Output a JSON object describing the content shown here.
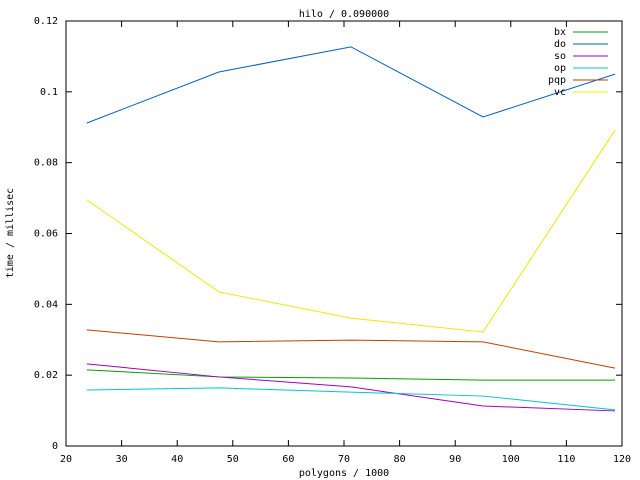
{
  "chart_data": {
    "type": "line",
    "title": "hilo / 0.090000",
    "x_label": "polygons / 1000",
    "y_label": "time / millisec",
    "x": [
      23.75,
      47.5,
      71.25,
      95,
      118.75
    ],
    "series": [
      {
        "name": "bx",
        "color": "#00a000",
        "values": [
          0.0215,
          0.0195,
          0.0192,
          0.0186,
          0.0186
        ]
      },
      {
        "name": "do",
        "color": "#0060c0",
        "values": [
          0.0912,
          0.1056,
          0.1127,
          0.0929,
          0.105
        ]
      },
      {
        "name": "so",
        "color": "#a000c0",
        "values": [
          0.0232,
          0.0195,
          0.0167,
          0.0113,
          0.0099
        ]
      },
      {
        "name": "op",
        "color": "#00c8c8",
        "values": [
          0.0158,
          0.0164,
          0.0152,
          0.0141,
          0.0102
        ]
      },
      {
        "name": "pqp",
        "color": "#c04000",
        "values": [
          0.0328,
          0.0294,
          0.0299,
          0.0294,
          0.022
        ]
      },
      {
        "name": "vc",
        "color": "#f0e800",
        "values": [
          0.0695,
          0.0435,
          0.0361,
          0.0322,
          0.0892
        ]
      }
    ],
    "xlim": [
      20,
      120
    ],
    "xticks": [
      20,
      30,
      40,
      50,
      60,
      70,
      80,
      90,
      100,
      110,
      120
    ],
    "ylim": [
      0,
      0.12
    ],
    "yticks": [
      0,
      0.02,
      0.04,
      0.06,
      0.08,
      0.1,
      0.12
    ],
    "legend": "top-right"
  }
}
